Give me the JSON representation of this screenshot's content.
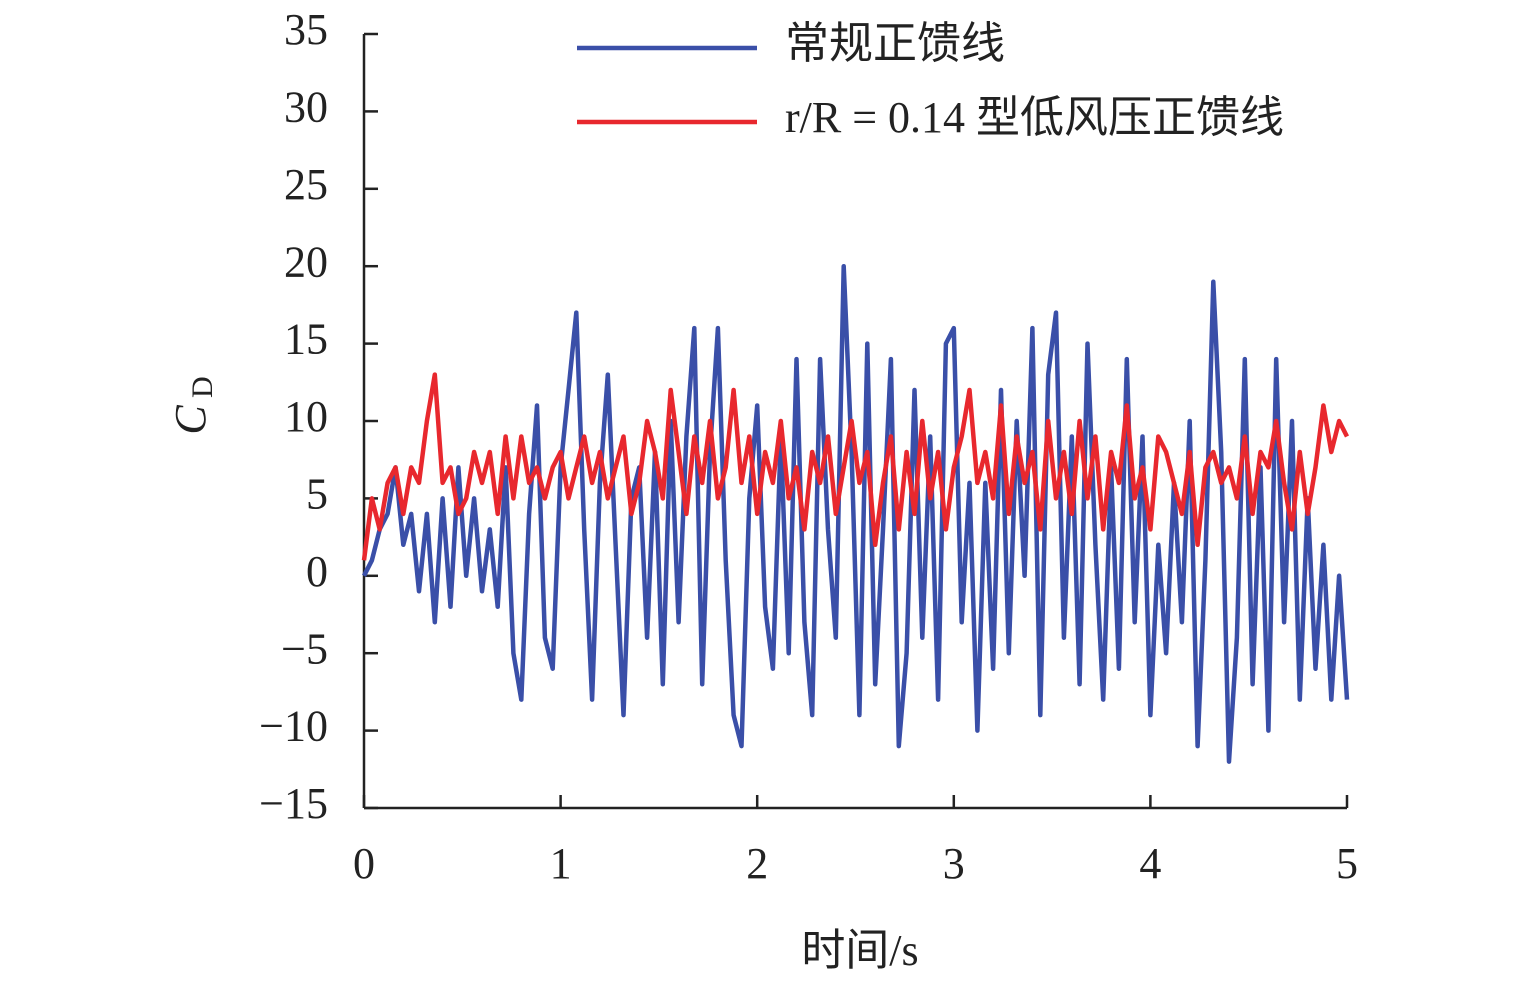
{
  "chart_data": {
    "type": "line",
    "xlabel": "时间/s",
    "ylabel": {
      "main": "C",
      "sub": "D"
    },
    "xlim": [
      0,
      5
    ],
    "xticks": [
      0,
      1,
      2,
      3,
      4,
      5
    ],
    "ylim": [
      -15,
      35
    ],
    "yticks": [
      -15,
      -10,
      -5,
      0,
      5,
      10,
      15,
      20,
      25,
      30,
      35
    ],
    "ytick_labels": [
      "−15",
      "−10",
      "−5",
      "0",
      "5",
      "10",
      "15",
      "20",
      "25",
      "30",
      "35"
    ],
    "legend": "top",
    "x": [
      0,
      0.04,
      0.08,
      0.12,
      0.16,
      0.2,
      0.24,
      0.28,
      0.32,
      0.36,
      0.4,
      0.44,
      0.48,
      0.52,
      0.56,
      0.6,
      0.64,
      0.68,
      0.72,
      0.76,
      0.8,
      0.84,
      0.88,
      0.92,
      0.96,
      1,
      1.04,
      1.08,
      1.12,
      1.16,
      1.2,
      1.24,
      1.28,
      1.32,
      1.36,
      1.4,
      1.44,
      1.48,
      1.52,
      1.56,
      1.6,
      1.64,
      1.68,
      1.72,
      1.76,
      1.8,
      1.84,
      1.88,
      1.92,
      1.96,
      2,
      2.04,
      2.08,
      2.12,
      2.16,
      2.2,
      2.24,
      2.28,
      2.32,
      2.36,
      2.4,
      2.44,
      2.48,
      2.52,
      2.56,
      2.6,
      2.64,
      2.68,
      2.72,
      2.76,
      2.8,
      2.84,
      2.88,
      2.92,
      2.96,
      3,
      3.04,
      3.08,
      3.12,
      3.16,
      3.2,
      3.24,
      3.28,
      3.32,
      3.36,
      3.4,
      3.44,
      3.48,
      3.52,
      3.56,
      3.6,
      3.64,
      3.68,
      3.72,
      3.76,
      3.8,
      3.84,
      3.88,
      3.92,
      3.96,
      4,
      4.04,
      4.08,
      4.12,
      4.16,
      4.2,
      4.24,
      4.28,
      4.32,
      4.36,
      4.4,
      4.44,
      4.48,
      4.52,
      4.56,
      4.6,
      4.64,
      4.68,
      4.72,
      4.76,
      4.8,
      4.84,
      4.88,
      4.92,
      4.96,
      5
    ],
    "series": [
      {
        "name": "常规正馈线",
        "color": "#3a4fa8",
        "values": [
          0,
          1,
          3,
          4,
          7,
          2,
          4,
          -1,
          4,
          -3,
          5,
          -2,
          7,
          0,
          5,
          -1,
          3,
          -2,
          7,
          -5,
          -8,
          4,
          11,
          -4,
          -6,
          7,
          12,
          17,
          3,
          -8,
          6,
          13,
          2,
          -9,
          5,
          7,
          -4,
          8,
          -7,
          10,
          -3,
          9,
          16,
          -7,
          8,
          16,
          1,
          -9,
          -11,
          5,
          11,
          -2,
          -6,
          9,
          -5,
          14,
          -3,
          -9,
          14,
          3,
          -4,
          20,
          8,
          -9,
          15,
          -7,
          3,
          14,
          -11,
          -5,
          12,
          -4,
          9,
          -8,
          15,
          16,
          -3,
          6,
          -10,
          6,
          -6,
          12,
          -5,
          10,
          0,
          16,
          -9,
          13,
          17,
          -4,
          9,
          -7,
          15,
          2,
          -8,
          7,
          -6,
          14,
          -3,
          9,
          -9,
          2,
          -5,
          6,
          -3,
          10,
          -11,
          1,
          19,
          8,
          -12,
          -4,
          14,
          -7,
          7,
          -10,
          14,
          -3,
          10,
          -8,
          5,
          -6,
          2,
          -8,
          0,
          -8
        ]
      },
      {
        "name": "r/R = 0.14 型低风压正馈线",
        "color": "#e8282e",
        "values": [
          1,
          5,
          3,
          6,
          7,
          4,
          7,
          6,
          10,
          13,
          6,
          7,
          4,
          5,
          8,
          6,
          8,
          4,
          9,
          5,
          9,
          6,
          7,
          5,
          7,
          8,
          5,
          7,
          9,
          6,
          8,
          5,
          7,
          9,
          4,
          6,
          10,
          8,
          5,
          12,
          8,
          4,
          9,
          6,
          10,
          5,
          7,
          12,
          6,
          9,
          4,
          8,
          6,
          10,
          5,
          7,
          3,
          8,
          6,
          9,
          4,
          7,
          10,
          6,
          8,
          2,
          6,
          9,
          3,
          8,
          4,
          10,
          5,
          8,
          3,
          7,
          9,
          12,
          6,
          8,
          5,
          11,
          4,
          9,
          6,
          8,
          3,
          10,
          5,
          8,
          4,
          10,
          5,
          9,
          3,
          8,
          6,
          11,
          5,
          7,
          3,
          9,
          8,
          6,
          4,
          8,
          2,
          7,
          8,
          6,
          7,
          5,
          9,
          4,
          8,
          7,
          10,
          6,
          3,
          8,
          4,
          7,
          11,
          8,
          10,
          9
        ]
      }
    ]
  }
}
